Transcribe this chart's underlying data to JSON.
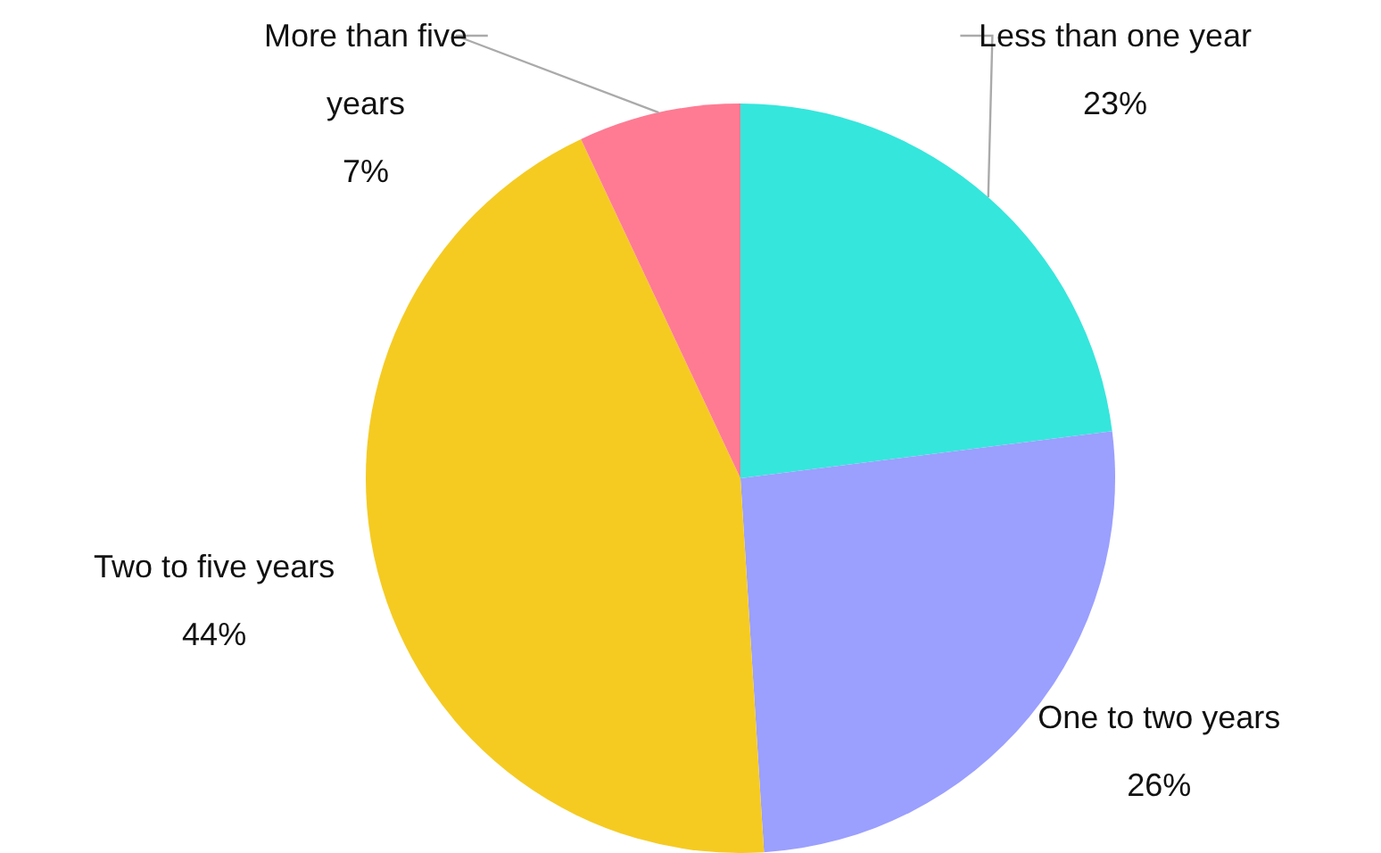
{
  "chart_data": {
    "type": "pie",
    "categories": [
      "Less than one year",
      "One to two years",
      "Two to five years",
      "More than five years"
    ],
    "values": [
      23,
      26,
      44,
      7
    ],
    "colors": [
      "#35e6dc",
      "#9b9ffe",
      "#f5cb22",
      "#fe7b93"
    ],
    "value_labels": [
      "23%",
      "26%",
      "44%",
      "7%"
    ]
  }
}
